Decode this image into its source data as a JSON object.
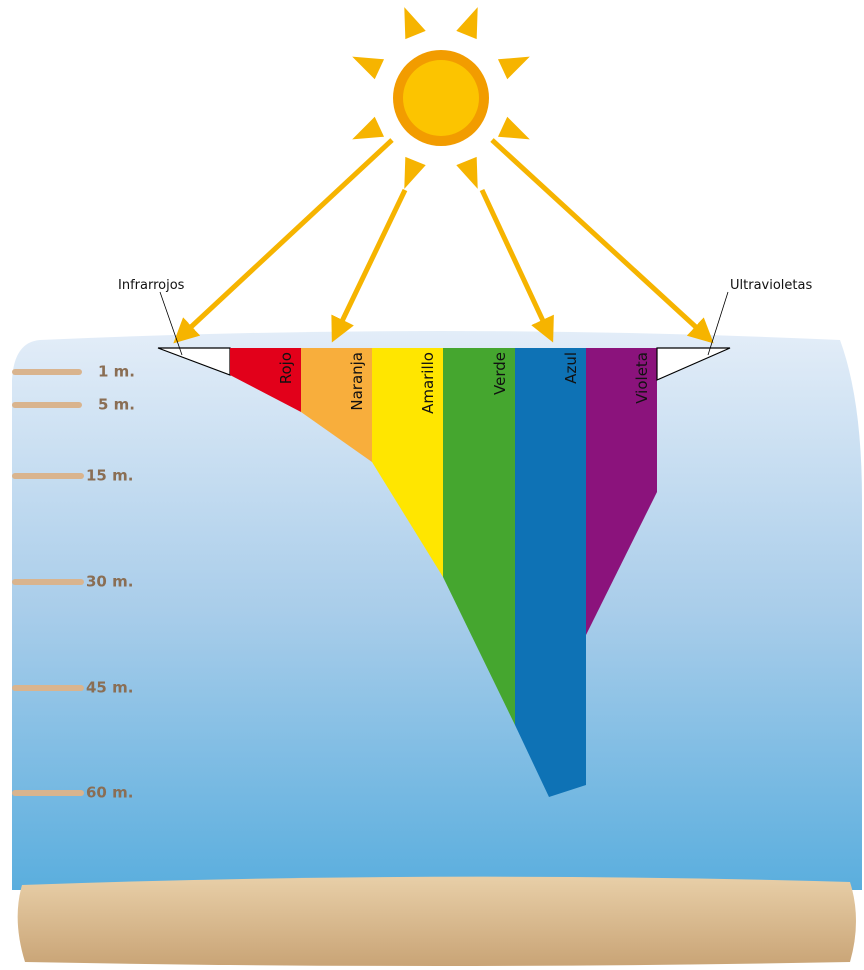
{
  "labels": {
    "infrared": "Infrarrojos",
    "ultraviolet": "Ultravioletas"
  },
  "bands": [
    "Rojo",
    "Naranja",
    "Amarillo",
    "Verde",
    "Azul",
    "Violeta"
  ],
  "depth_markers": [
    "1 m.",
    "5 m.",
    "15 m.",
    "30 m.",
    "45 m.",
    "60 m."
  ]
}
